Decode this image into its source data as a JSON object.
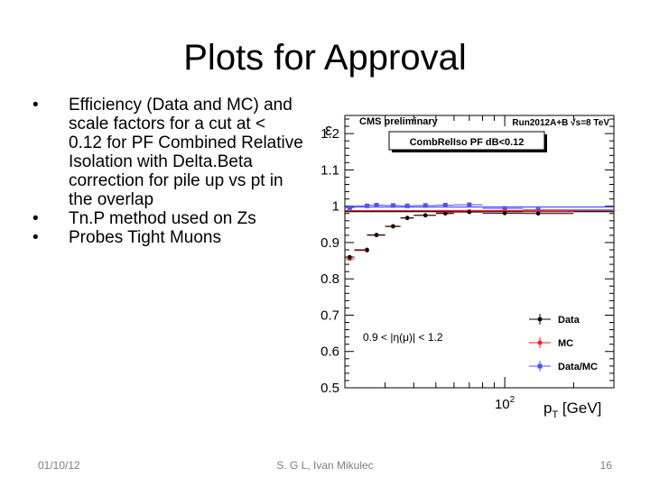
{
  "slide": {
    "title": "Plots for Approval",
    "bullets": [
      "Efficiency (Data and MC) and scale factors for a cut at < 0.12 for PF Combined Relative Isolation with Delta.Beta correction for pile up vs pt in the overlap",
      "Tn.P method used on Zs",
      "Probes Tight Muons"
    ],
    "bullet_glyph": "•",
    "footer": {
      "date": "01/10/12",
      "author": "S. G L, Ivan Mikulec",
      "page": "16"
    }
  },
  "chart_data": {
    "type": "scatter",
    "header_left": "CMS preliminary",
    "header_right": "Run2012A+B √s=8 TeV",
    "boxed_label": "CombRelIso PF dB<0.12",
    "annotation": "0.9 < |η(μ)| < 1.2",
    "ylabel": "ε",
    "xlabel": "p_T [GeV]",
    "xlabel_parts": {
      "main": "p",
      "sub": "T",
      "unit": " [GeV]"
    },
    "xscale": "log",
    "xlim": [
      20,
      300
    ],
    "ylim": [
      0.5,
      1.25
    ],
    "yticks": [
      0.5,
      0.6,
      0.7,
      0.8,
      0.9,
      1,
      1.1,
      1.2
    ],
    "ytick_labels": [
      "0.5",
      "0.6",
      "0.7",
      "0.8",
      "0.9",
      "1",
      "1.1",
      "1.2"
    ],
    "xtick_label": {
      "base": "10",
      "exp": "2",
      "value": 100
    },
    "legend_position": "bottom-right",
    "series": [
      {
        "name": "Data",
        "color": "#000000",
        "marker": "circle",
        "x": [
          21,
          25,
          27.5,
          32.5,
          37.5,
          45,
          55,
          70,
          100,
          140
        ],
        "xlo": [
          20,
          22,
          25,
          30,
          35,
          40,
          50,
          60,
          80,
          120
        ],
        "xhi": [
          22,
          25,
          30,
          35,
          40,
          50,
          60,
          80,
          120,
          200
        ],
        "y": [
          0.86,
          0.88,
          0.921,
          0.945,
          0.968,
          0.975,
          0.98,
          0.984,
          0.981,
          0.98
        ]
      },
      {
        "name": "MC",
        "color": "#ff2020",
        "marker": "circle",
        "x": [
          21,
          25,
          27.5,
          32.5,
          37.5,
          45,
          55,
          70,
          100,
          140
        ],
        "xlo": [
          20,
          22,
          25,
          30,
          35,
          40,
          50,
          60,
          80,
          120
        ],
        "xhi": [
          22,
          25,
          30,
          35,
          40,
          50,
          60,
          80,
          120,
          200
        ],
        "y": [
          0.855,
          0.878,
          0.92,
          0.944,
          0.967,
          0.975,
          0.982,
          0.986,
          0.987,
          0.985
        ]
      },
      {
        "name": "Data/MC",
        "color": "#5050ff",
        "marker": "square",
        "x": [
          21,
          25,
          27.5,
          32.5,
          37.5,
          45,
          55,
          70,
          100,
          140
        ],
        "xlo": [
          20,
          22,
          25,
          30,
          35,
          40,
          50,
          60,
          80,
          120
        ],
        "xhi": [
          22,
          25,
          30,
          35,
          40,
          50,
          60,
          80,
          120,
          300
        ],
        "y": [
          0.996,
          1.001,
          1.003,
          1.002,
          1.001,
          1.002,
          1.003,
          1.004,
          0.994,
          0.99
        ]
      }
    ],
    "fit_lines": [
      {
        "series": "Data/MC",
        "color": "#5050ff",
        "y": 0.998
      },
      {
        "series": "MC",
        "color": "#ff2020",
        "y": 0.988
      },
      {
        "series": "Data",
        "color": "#000000",
        "y": 0.985
      }
    ]
  }
}
